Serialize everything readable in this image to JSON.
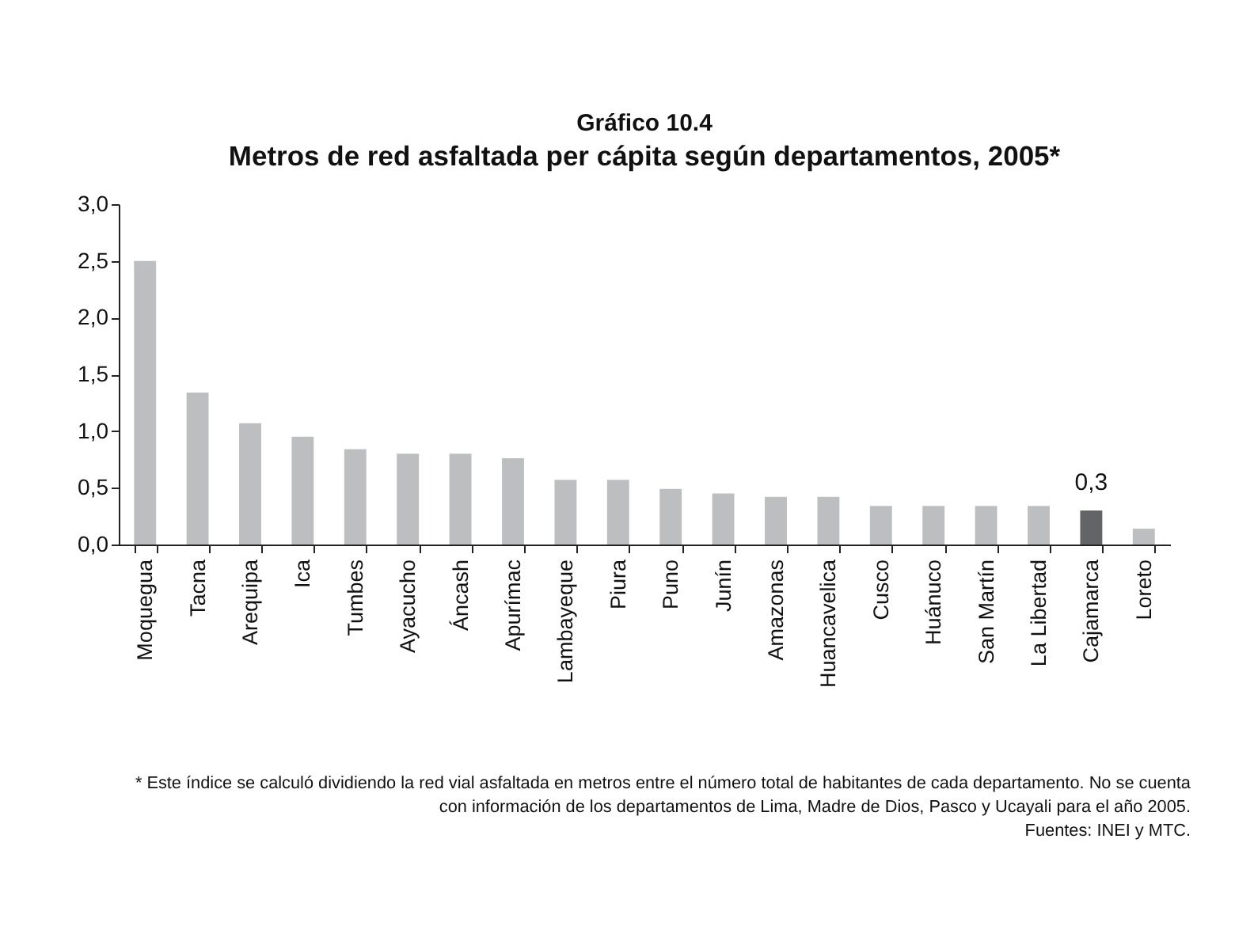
{
  "chart_data": {
    "type": "bar",
    "title": "Gráfico 10.4",
    "subtitle": "Metros de red asfaltada per cápita según departamentos, 2005*",
    "categories": [
      "Moquegua",
      "Tacna",
      "Arequipa",
      "Ica",
      "Tumbes",
      "Ayacucho",
      "Áncash",
      "Apurímac",
      "Lambayeque",
      "Piura",
      "Puno",
      "Junín",
      "Amazonas",
      "Huancavelica",
      "Cusco",
      "Huánuco",
      "San Martín",
      "La Libertad",
      "Cajamarca",
      "Loreto"
    ],
    "values": [
      2.5,
      1.34,
      1.07,
      0.95,
      0.84,
      0.8,
      0.8,
      0.76,
      0.57,
      0.57,
      0.49,
      0.45,
      0.42,
      0.42,
      0.34,
      0.34,
      0.34,
      0.34,
      0.3,
      0.14
    ],
    "colors": [
      "#bdbec0",
      "#bdbec0",
      "#bdbec0",
      "#bdbec0",
      "#bdbec0",
      "#bdbec0",
      "#bdbec0",
      "#bdbec0",
      "#bdbec0",
      "#bdbec0",
      "#bdbec0",
      "#bdbec0",
      "#bdbec0",
      "#bdbec0",
      "#bdbec0",
      "#bdbec0",
      "#bdbec0",
      "#bdbec0",
      "#636466",
      "#bdbec0"
    ],
    "value_labels": [
      null,
      null,
      null,
      null,
      null,
      null,
      null,
      null,
      null,
      null,
      null,
      null,
      null,
      null,
      null,
      null,
      null,
      null,
      "0,3",
      null
    ],
    "ylim": [
      0,
      3
    ],
    "yticks": [
      {
        "value": 0,
        "label": "0,0"
      },
      {
        "value": 0.5,
        "label": "0,5"
      },
      {
        "value": 1,
        "label": "1,0"
      },
      {
        "value": 1.5,
        "label": "1,5"
      },
      {
        "value": 2,
        "label": "2,0"
      },
      {
        "value": 2.5,
        "label": "2,5"
      },
      {
        "value": 3,
        "label": "3,0"
      }
    ],
    "grid": false,
    "legend": false,
    "annotations": [
      "* Este índice se calculó dividiendo la red vial asfaltada en metros entre el número total de habitantes de cada departamento. No se cuenta con información de los departamentos de Lima, Madre de Dios, Pasco y Ucayali para el año 2005.",
      "Fuentes: INEI y MTC."
    ]
  }
}
